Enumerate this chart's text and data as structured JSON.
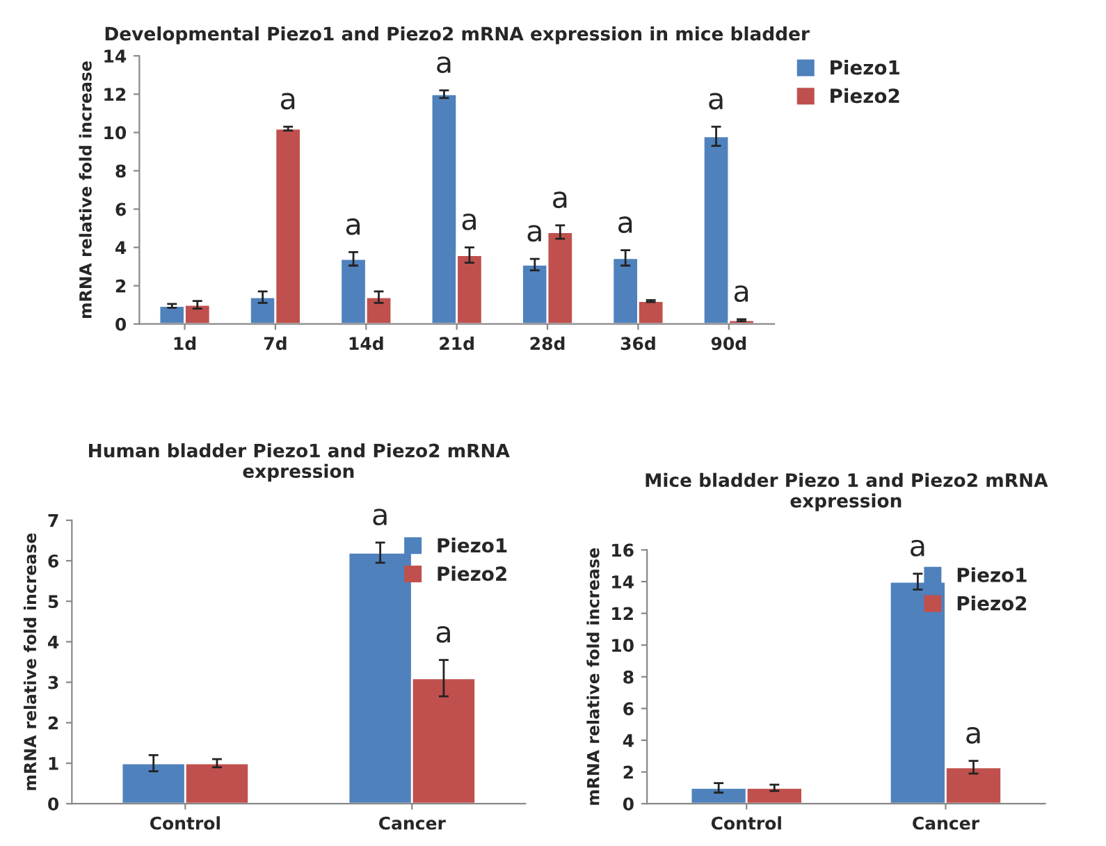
{
  "chart_data": [
    {
      "type": "bar",
      "title": "Developmental Piezo1 and Piezo2 mRNA expression in mice bladder",
      "ylabel": "mRNA relative fold increase",
      "categories": [
        "1d",
        "7d",
        "14d",
        "21d",
        "28d",
        "36d",
        "90d"
      ],
      "series": [
        {
          "name": "Piezo1",
          "color": "#4f81bd",
          "values": [
            0.95,
            1.4,
            3.4,
            12.0,
            3.1,
            3.45,
            9.8
          ],
          "errors": [
            0.1,
            0.3,
            0.35,
            0.2,
            0.3,
            0.4,
            0.5
          ]
        },
        {
          "name": "Piezo2",
          "color": "#c0504d",
          "values": [
            1.0,
            10.2,
            1.4,
            3.6,
            4.8,
            1.2,
            0.2
          ],
          "errors": [
            0.2,
            0.1,
            0.3,
            0.4,
            0.35,
            0.05,
            0.05
          ]
        }
      ],
      "ylim": [
        0,
        14
      ],
      "yticks": [
        0,
        2,
        4,
        6,
        8,
        10,
        12,
        14
      ],
      "grid": false,
      "legend": "right",
      "annotations": [
        {
          "text": "a",
          "x": "7d",
          "y": 10.2
        },
        {
          "text": "a",
          "x": "14d",
          "y": 3.4
        },
        {
          "text": "a",
          "x": "21d",
          "y": 12.0
        },
        {
          "text": "a",
          "x": "21d",
          "y": 3.6
        },
        {
          "text": "a",
          "x": "28d",
          "y": 3.1
        },
        {
          "text": "a",
          "x": "28d",
          "y": 4.8
        },
        {
          "text": "a",
          "x": "36d",
          "y": 3.45
        },
        {
          "text": "a",
          "x": "90d",
          "y": 9.8
        },
        {
          "text": "a",
          "x": "90d",
          "y": 0.2
        }
      ]
    },
    {
      "type": "bar",
      "title": "Human bladder Piezo1 and Piezo2 mRNA\nexpression",
      "ylabel": "mRNA relative fold increase",
      "categories": [
        "Control",
        "Cancer"
      ],
      "series": [
        {
          "name": "Piezo1",
          "color": "#4f81bd",
          "values": [
            1.0,
            6.2
          ],
          "errors": [
            0.2,
            0.25
          ]
        },
        {
          "name": "Piezo2",
          "color": "#c0504d",
          "values": [
            1.0,
            3.1
          ],
          "errors": [
            0.1,
            0.45
          ]
        }
      ],
      "ylim": [
        0,
        7
      ],
      "yticks": [
        0,
        1,
        2,
        3,
        4,
        5,
        6,
        7
      ],
      "grid": false,
      "legend": "top right",
      "annotations": [
        {
          "text": "a",
          "x": "Cancer",
          "y": 6.2
        },
        {
          "text": "a",
          "x": "Cancer",
          "y": 3.1
        }
      ]
    },
    {
      "type": "bar",
      "title": "Mice bladder Piezo 1 and Piezo2 mRNA\nexpression",
      "ylabel": "mRNA relative fold increase",
      "categories": [
        "Control",
        "Cancer"
      ],
      "series": [
        {
          "name": "Piezo1",
          "color": "#4f81bd",
          "values": [
            1.0,
            14.0
          ],
          "errors": [
            0.3,
            0.5
          ]
        },
        {
          "name": "Piezo2",
          "color": "#c0504d",
          "values": [
            1.0,
            2.3
          ],
          "errors": [
            0.2,
            0.4
          ]
        }
      ],
      "ylim": [
        0,
        16
      ],
      "yticks": [
        0,
        2,
        4,
        6,
        8,
        10,
        12,
        14,
        16
      ],
      "grid": false,
      "legend": "top right",
      "annotations": [
        {
          "text": "a",
          "x": "Cancer",
          "y": 14.0
        },
        {
          "text": "a",
          "x": "Cancer",
          "y": 2.3
        }
      ]
    }
  ]
}
